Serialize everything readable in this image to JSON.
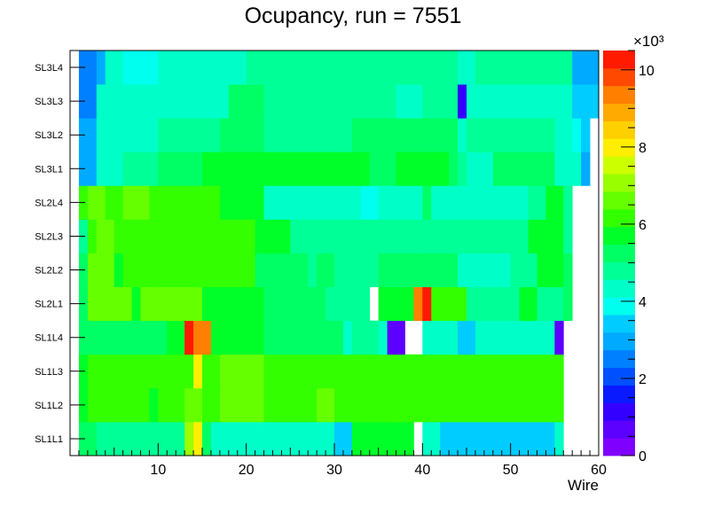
{
  "chart_data": {
    "type": "heatmap",
    "title": "Ocupancy, run = 7551",
    "xlabel": "Wire",
    "ylabel": "",
    "x_ticks": [
      "10",
      "20",
      "30",
      "40",
      "50",
      "60"
    ],
    "xlim": [
      0,
      60
    ],
    "y_categories": [
      "SL1L1",
      "SL1L2",
      "SL1L3",
      "SL1L4",
      "SL2L1",
      "SL2L2",
      "SL2L3",
      "SL2L4",
      "SL3L1",
      "SL3L2",
      "SL3L3",
      "SL3L4"
    ],
    "z_unit_label": "×10³",
    "z_ticks": [
      "0",
      "2",
      "4",
      "6",
      "8",
      "10"
    ],
    "zlim": [
      0,
      10.5
    ],
    "palette": [
      "#7f00ff",
      "#5c00ff",
      "#3300ff",
      "#0a1aff",
      "#0050ff",
      "#0080ff",
      "#00aaff",
      "#00ccff",
      "#00ffee",
      "#00ffc8",
      "#00ff96",
      "#00ff64",
      "#00ff28",
      "#33ff00",
      "#66ff00",
      "#99ff00",
      "#ccff00",
      "#ffee00",
      "#ffd000",
      "#ffaa00",
      "#ff7f00",
      "#ff4800",
      "#ff1a00"
    ],
    "rows": {
      "SL1L1": [
        [
          1,
          3,
          5.3
        ],
        [
          3,
          7,
          4.8
        ],
        [
          7,
          9,
          4.6
        ],
        [
          9,
          12,
          4.6
        ],
        [
          12,
          13,
          4.8
        ],
        [
          13,
          14,
          7.1
        ],
        [
          14,
          15,
          8.0
        ],
        [
          15,
          16,
          5.3
        ],
        [
          16,
          22,
          4.4
        ],
        [
          22,
          30,
          4.2
        ],
        [
          30,
          32,
          3.2
        ],
        [
          32,
          36,
          5.7
        ],
        [
          36,
          39,
          5.7
        ],
        [
          39,
          40,
          0
        ],
        [
          40,
          42,
          4.2
        ],
        [
          42,
          55,
          3.3
        ],
        [
          55,
          56,
          4.3
        ]
      ],
      "SL1L2": [
        [
          1,
          2,
          5.8
        ],
        [
          2,
          5,
          6.0
        ],
        [
          5,
          9,
          6.1
        ],
        [
          9,
          10,
          5.6
        ],
        [
          10,
          13,
          6.1
        ],
        [
          13,
          14,
          6.4
        ],
        [
          14,
          15,
          6.5
        ],
        [
          15,
          17,
          6.0
        ],
        [
          17,
          22,
          6.6
        ],
        [
          22,
          28,
          6.2
        ],
        [
          28,
          30,
          6.4
        ],
        [
          30,
          37,
          6.0
        ],
        [
          37,
          38,
          6.2
        ],
        [
          38,
          48,
          6.0
        ],
        [
          48,
          50,
          6.0
        ],
        [
          50,
          55,
          6.0
        ],
        [
          55,
          56,
          6.0
        ]
      ],
      "SL1L3": [
        [
          1,
          2,
          5.5
        ],
        [
          2,
          8,
          6.1
        ],
        [
          8,
          10,
          6.1
        ],
        [
          10,
          14,
          6.1
        ],
        [
          14,
          15,
          7.8
        ],
        [
          15,
          17,
          6.1
        ],
        [
          17,
          22,
          6.6
        ],
        [
          22,
          34,
          6.1
        ],
        [
          34,
          37,
          6.1
        ],
        [
          37,
          46,
          6.1
        ],
        [
          46,
          56,
          6.1
        ]
      ],
      "SL1L4": [
        [
          1,
          8,
          5.2
        ],
        [
          8,
          11,
          5.2
        ],
        [
          11,
          13,
          5.6
        ],
        [
          13,
          14,
          10.2
        ],
        [
          14,
          16,
          9.4
        ],
        [
          16,
          22,
          5.6
        ],
        [
          22,
          31,
          5.2
        ],
        [
          31,
          32,
          4.4
        ],
        [
          32,
          35,
          5.0
        ],
        [
          35,
          36,
          4.4
        ],
        [
          36,
          38,
          0.8
        ],
        [
          38,
          40,
          0
        ],
        [
          40,
          44,
          4.2
        ],
        [
          44,
          46,
          3.6
        ],
        [
          46,
          54,
          4.2
        ],
        [
          54,
          55,
          4.2
        ],
        [
          55,
          56,
          0.8
        ]
      ],
      "SL2L1": [
        [
          1,
          2,
          5.4
        ],
        [
          2,
          7,
          6.7
        ],
        [
          7,
          8,
          5.9
        ],
        [
          8,
          15,
          6.8
        ],
        [
          15,
          22,
          5.9
        ],
        [
          22,
          29,
          5.2
        ],
        [
          29,
          34,
          4.6
        ],
        [
          34,
          35,
          0
        ],
        [
          35,
          39,
          5.6
        ],
        [
          39,
          40,
          9.4
        ],
        [
          40,
          41,
          10.2
        ],
        [
          41,
          45,
          6.0
        ],
        [
          45,
          51,
          4.8
        ],
        [
          51,
          53,
          5.6
        ],
        [
          53,
          54,
          5.0
        ],
        [
          54,
          56,
          5.0
        ],
        [
          56,
          57,
          5.4
        ]
      ],
      "SL2L2": [
        [
          1,
          2,
          5.2
        ],
        [
          2,
          5,
          6.6
        ],
        [
          5,
          6,
          5.8
        ],
        [
          6,
          10,
          6.1
        ],
        [
          10,
          14,
          6.2
        ],
        [
          14,
          21,
          6.0
        ],
        [
          21,
          23,
          5.4
        ],
        [
          23,
          27,
          5.3
        ],
        [
          27,
          28,
          4.6
        ],
        [
          28,
          30,
          5.2
        ],
        [
          30,
          35,
          4.6
        ],
        [
          35,
          36,
          5.4
        ],
        [
          36,
          44,
          5.2
        ],
        [
          44,
          50,
          4.4
        ],
        [
          50,
          53,
          5.0
        ],
        [
          53,
          56,
          5.6
        ],
        [
          56,
          57,
          5.2
        ]
      ],
      "SL2L3": [
        [
          1,
          2,
          5.0
        ],
        [
          2,
          3,
          6.0
        ],
        [
          3,
          5,
          6.6
        ],
        [
          5,
          8,
          6.1
        ],
        [
          8,
          14,
          6.0
        ],
        [
          14,
          21,
          6.1
        ],
        [
          21,
          25,
          5.6
        ],
        [
          25,
          40,
          4.6
        ],
        [
          40,
          50,
          4.6
        ],
        [
          50,
          52,
          5.0
        ],
        [
          52,
          56,
          5.5
        ],
        [
          56,
          57,
          4.8
        ]
      ],
      "SL2L4": [
        [
          1,
          2,
          6.0
        ],
        [
          2,
          4,
          6.4
        ],
        [
          4,
          6,
          6.2
        ],
        [
          6,
          9,
          6.5
        ],
        [
          9,
          11,
          6.1
        ],
        [
          11,
          17,
          6.0
        ],
        [
          17,
          22,
          5.8
        ],
        [
          22,
          25,
          4.4
        ],
        [
          25,
          33,
          4.4
        ],
        [
          33,
          35,
          4.0
        ],
        [
          35,
          40,
          4.4
        ],
        [
          40,
          41,
          5.2
        ],
        [
          41,
          47,
          4.4
        ],
        [
          47,
          52,
          4.2
        ],
        [
          52,
          54,
          4.8
        ],
        [
          54,
          56,
          5.5
        ],
        [
          56,
          57,
          4.8
        ]
      ],
      "SL3L1": [
        [
          1,
          3,
          3.0
        ],
        [
          3,
          6,
          4.4
        ],
        [
          6,
          10,
          5.0
        ],
        [
          10,
          15,
          5.3
        ],
        [
          15,
          26,
          5.5
        ],
        [
          26,
          34,
          5.8
        ],
        [
          34,
          36,
          5.2
        ],
        [
          36,
          37,
          5.2
        ],
        [
          37,
          43,
          5.5
        ],
        [
          43,
          44,
          5.2
        ],
        [
          44,
          45,
          4.8
        ],
        [
          45,
          48,
          4.2
        ],
        [
          48,
          52,
          5.4
        ],
        [
          52,
          55,
          5.2
        ],
        [
          55,
          58,
          4.2
        ],
        [
          58,
          59,
          2.8
        ]
      ],
      "SL3L2": [
        [
          1,
          3,
          2.8
        ],
        [
          3,
          10,
          4.3
        ],
        [
          10,
          17,
          4.6
        ],
        [
          17,
          22,
          5.2
        ],
        [
          22,
          32,
          5.0
        ],
        [
          32,
          37,
          5.4
        ],
        [
          37,
          44,
          5.2
        ],
        [
          44,
          45,
          4.4
        ],
        [
          45,
          48,
          4.6
        ],
        [
          48,
          52,
          4.8
        ],
        [
          52,
          55,
          4.6
        ],
        [
          55,
          57,
          4.4
        ],
        [
          57,
          58,
          3.8
        ],
        [
          58,
          59,
          3.2
        ]
      ],
      "SL3L3": [
        [
          1,
          3,
          2.4
        ],
        [
          3,
          18,
          4.2
        ],
        [
          18,
          22,
          5.2
        ],
        [
          22,
          28,
          4.8
        ],
        [
          28,
          32,
          4.6
        ],
        [
          32,
          37,
          4.8
        ],
        [
          37,
          40,
          4.4
        ],
        [
          40,
          44,
          4.6
        ],
        [
          44,
          45,
          1.0
        ],
        [
          45,
          55,
          4.4
        ],
        [
          55,
          57,
          4.2
        ],
        [
          57,
          60,
          3.6
        ]
      ],
      "SL3L4": [
        [
          1,
          3,
          2.6
        ],
        [
          3,
          4,
          2.8
        ],
        [
          4,
          6,
          4.4
        ],
        [
          6,
          10,
          4.0
        ],
        [
          10,
          20,
          4.4
        ],
        [
          20,
          44,
          4.6
        ],
        [
          44,
          46,
          4.4
        ],
        [
          46,
          57,
          4.6
        ],
        [
          57,
          60,
          3.0
        ]
      ]
    }
  }
}
